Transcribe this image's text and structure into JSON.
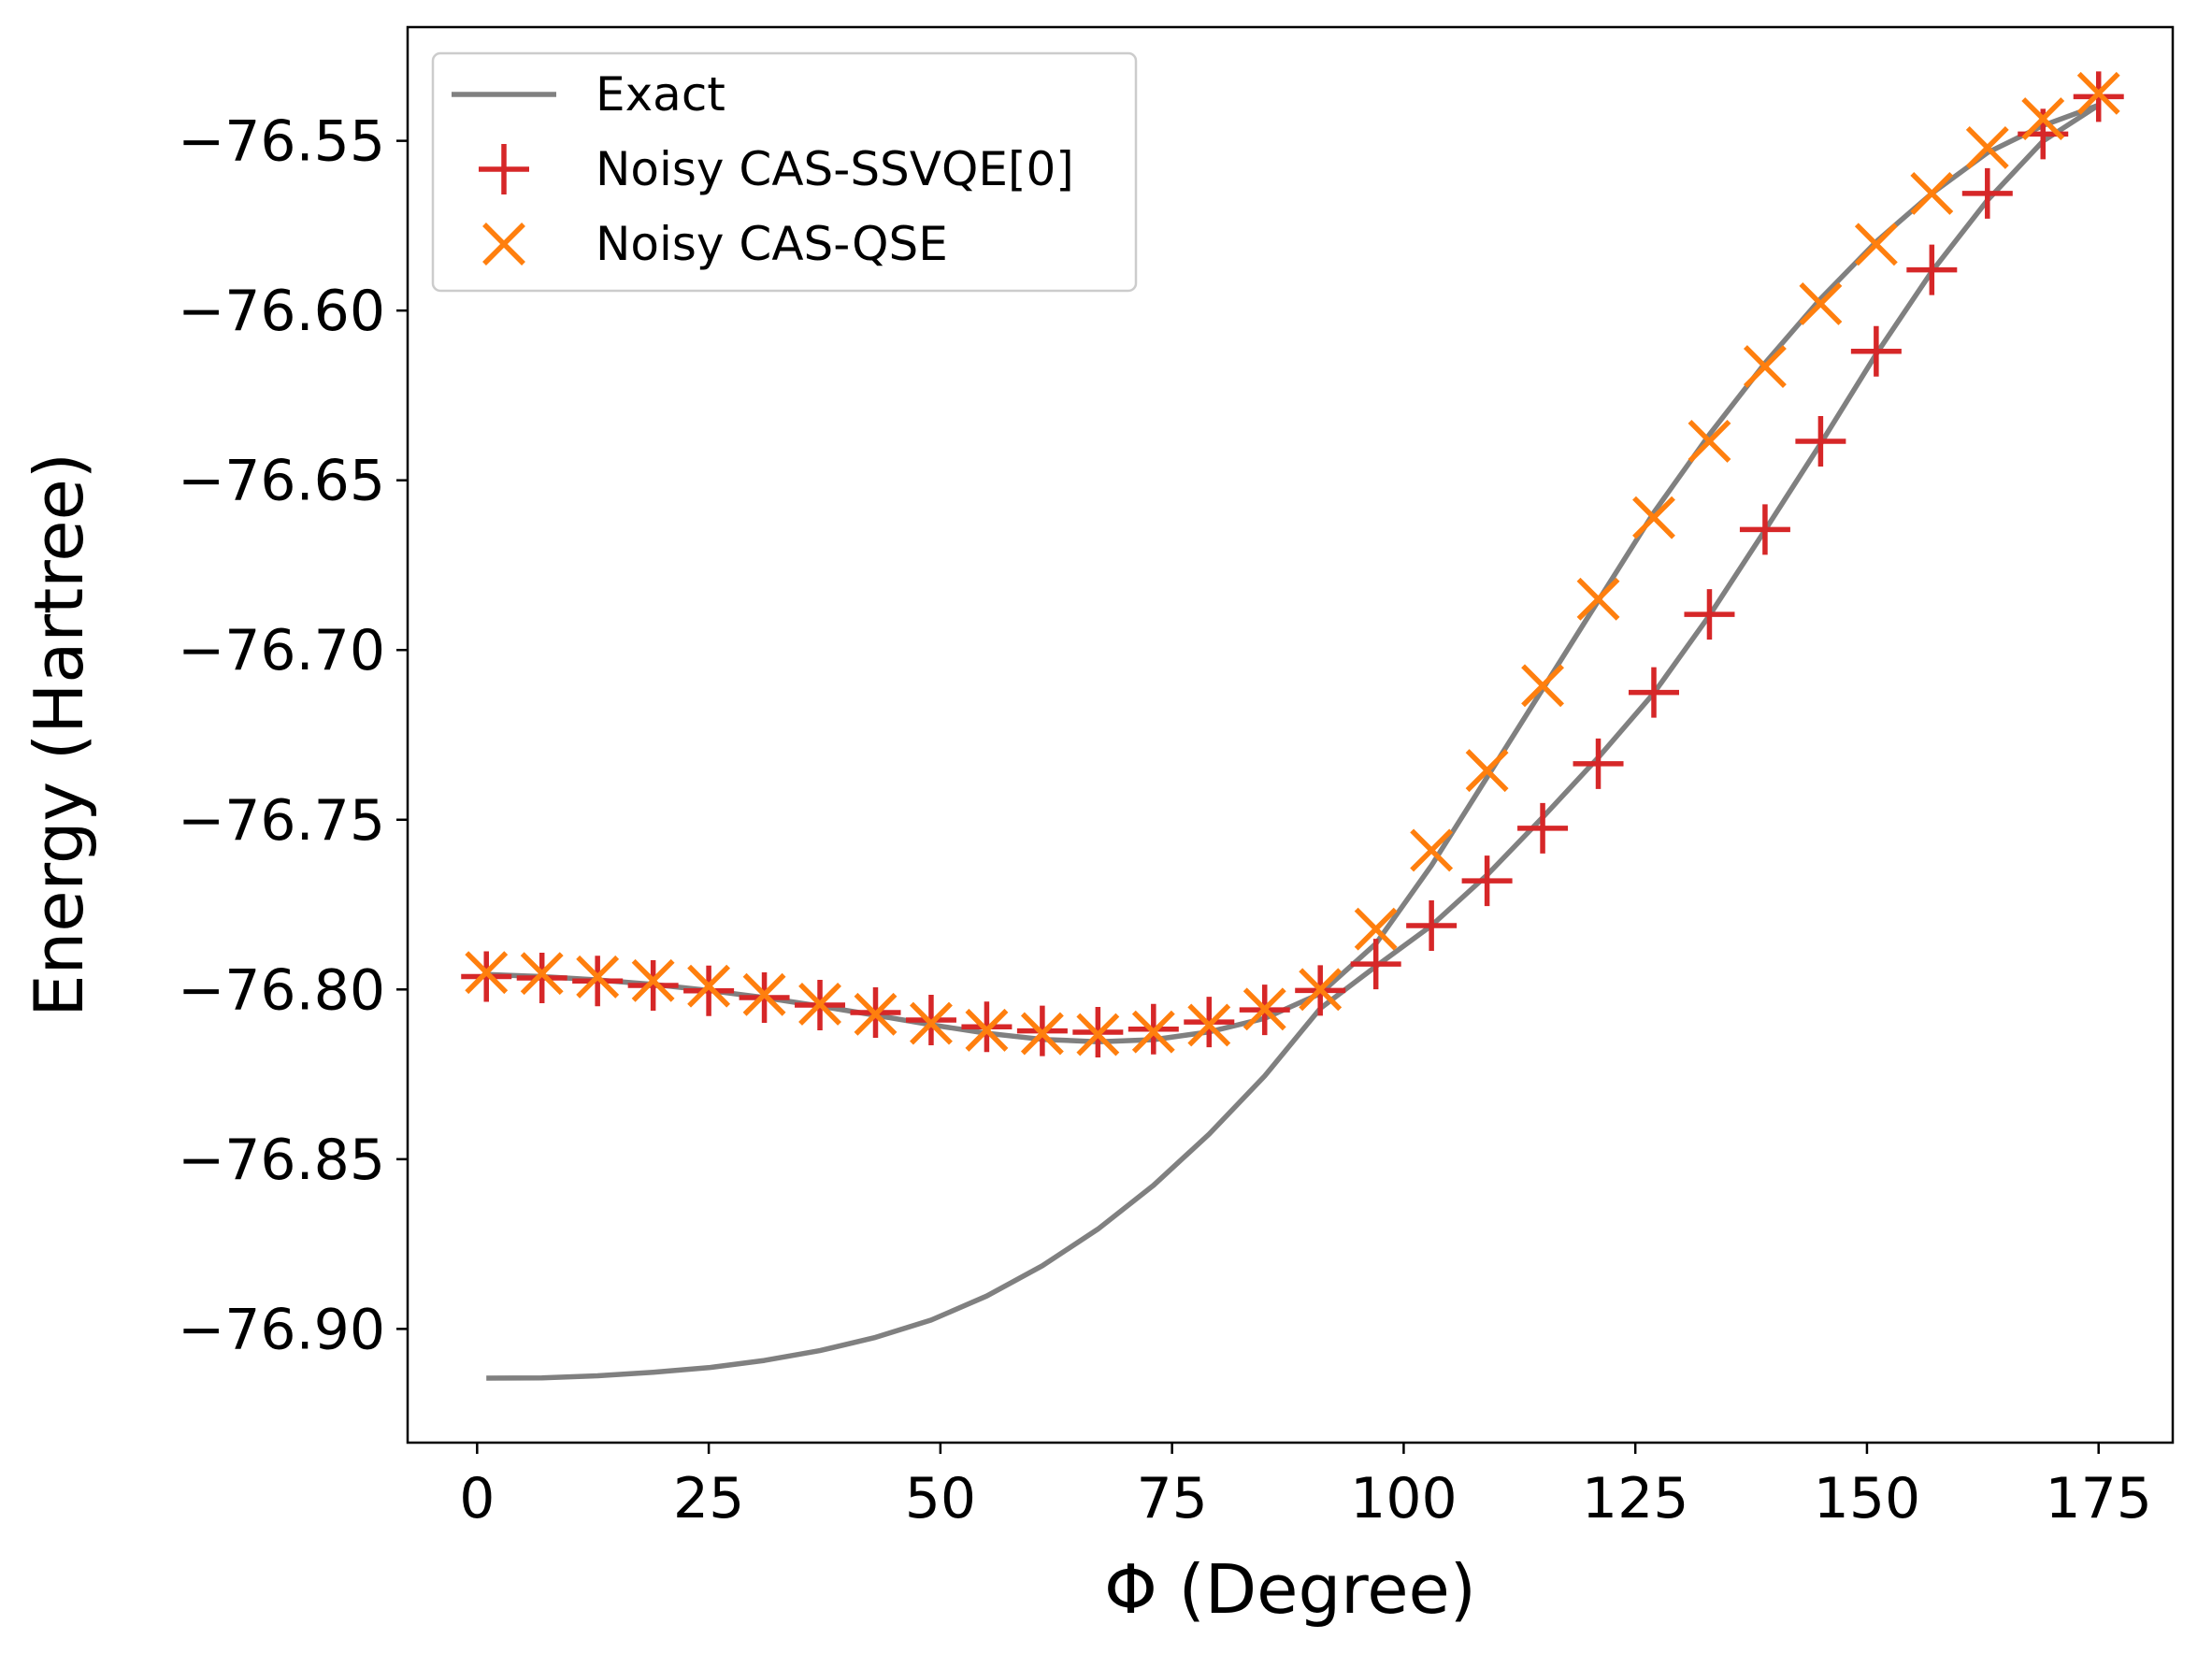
{
  "chart_data": {
    "type": "line",
    "title": "",
    "xlabel": "Φ (Degree)",
    "ylabel": "Energy (Hartree)",
    "xlim": [
      -7.5,
      183
    ],
    "ylim": [
      -76.9335,
      -76.5165
    ],
    "xticks": [
      0,
      25,
      50,
      75,
      100,
      125,
      150,
      175
    ],
    "yticks": [
      -76.9,
      -76.85,
      -76.8,
      -76.75,
      -76.7,
      -76.65,
      -76.6,
      -76.55
    ],
    "xtick_labels": [
      "0",
      "25",
      "50",
      "75",
      "100",
      "125",
      "150",
      "175"
    ],
    "ytick_labels": [
      "−76.90",
      "−76.85",
      "−76.80",
      "−76.75",
      "−76.70",
      "−76.65",
      "−76.60",
      "−76.55"
    ],
    "legend_position": "top-left",
    "grid": false,
    "x": [
      1,
      7,
      13,
      19,
      25,
      31,
      37,
      43,
      49,
      55,
      61,
      67,
      73,
      79,
      85,
      91,
      97,
      103,
      109,
      115,
      121,
      127,
      133,
      139,
      145,
      151,
      157,
      163,
      169,
      175
    ],
    "series": [
      {
        "name": "Exact",
        "kind": "line",
        "color": "#808080",
        "values": [
          -76.9145,
          -76.9144,
          -76.9138,
          -76.9128,
          -76.9114,
          -76.9093,
          -76.9064,
          -76.9025,
          -76.8974,
          -76.8903,
          -76.8814,
          -76.8706,
          -76.8577,
          -76.8426,
          -76.8255,
          -76.8056,
          -76.7932,
          -76.7812,
          -76.7663,
          -76.7493,
          -76.7317,
          -76.7127,
          -76.6898,
          -76.6647,
          -76.6392,
          -76.6128,
          -76.5885,
          -76.5675,
          -76.5501,
          -76.5395
        ]
      },
      {
        "name": "Exact (upper)",
        "kind": "line-unlabeled",
        "color": "#808080",
        "values": [
          -76.7956,
          -76.7962,
          -76.7972,
          -76.7985,
          -76.8003,
          -76.8024,
          -76.8049,
          -76.8076,
          -76.8104,
          -76.8129,
          -76.8147,
          -76.8154,
          -76.8148,
          -76.8125,
          -76.8085,
          -76.8012,
          -76.7865,
          -76.7635,
          -76.7375,
          -76.7115,
          -76.6855,
          -76.6595,
          -76.6365,
          -76.6155,
          -76.5965,
          -76.5797,
          -76.5655,
          -76.5535,
          -76.5455,
          -76.5395
        ]
      },
      {
        "name": "Noisy CAS-SSVQE[0]",
        "kind": "plus",
        "color": "#d62728",
        "values": [
          -76.7962,
          -76.7966,
          -76.7975,
          -76.7988,
          -76.8004,
          -76.8024,
          -76.8046,
          -76.8068,
          -76.809,
          -76.811,
          -76.8122,
          -76.8126,
          -76.8117,
          -76.8096,
          -76.806,
          -76.8003,
          -76.7925,
          -76.7812,
          -76.768,
          -76.7525,
          -76.7335,
          -76.7125,
          -76.6895,
          -76.6645,
          -76.6385,
          -76.612,
          -76.588,
          -76.5655,
          -76.548,
          -76.537
        ]
      },
      {
        "name": "Noisy CAS-QSE",
        "kind": "cross",
        "color": "#ff7f0e",
        "values": [
          -76.795,
          -76.7953,
          -76.7963,
          -76.7974,
          -76.799,
          -76.8015,
          -76.8043,
          -76.8073,
          -76.81,
          -76.812,
          -76.813,
          -76.8133,
          -76.8125,
          -76.8105,
          -76.8058,
          -76.8,
          -76.7822,
          -76.759,
          -76.7355,
          -76.7105,
          -76.685,
          -76.661,
          -76.6385,
          -76.6165,
          -76.598,
          -76.5805,
          -76.5655,
          -76.552,
          -76.5435,
          -76.536
        ]
      }
    ]
  }
}
